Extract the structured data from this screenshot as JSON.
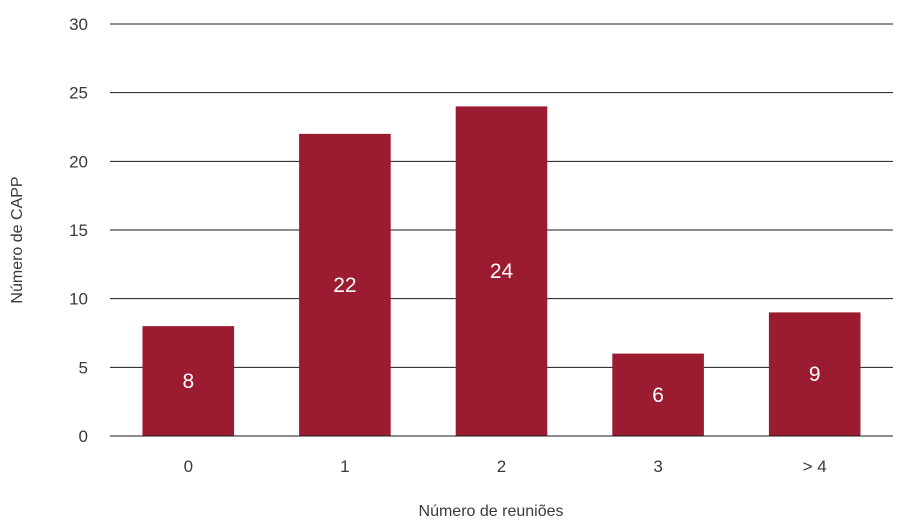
{
  "chart_data": {
    "type": "bar",
    "title": "",
    "xlabel": "Número de reuniões",
    "ylabel": "Número de CAPP",
    "categories": [
      "0",
      "1",
      "2",
      "3",
      "> 4"
    ],
    "values": [
      8,
      22,
      24,
      6,
      9
    ],
    "data_labels": [
      "8",
      "22",
      "24",
      "6",
      "9"
    ],
    "y_ticks": [
      "0",
      "5",
      "10",
      "15",
      "20",
      "25",
      "30"
    ],
    "ylim": [
      0,
      30
    ],
    "grid": true,
    "legend": "none",
    "bar_color": "#9b1c31"
  }
}
